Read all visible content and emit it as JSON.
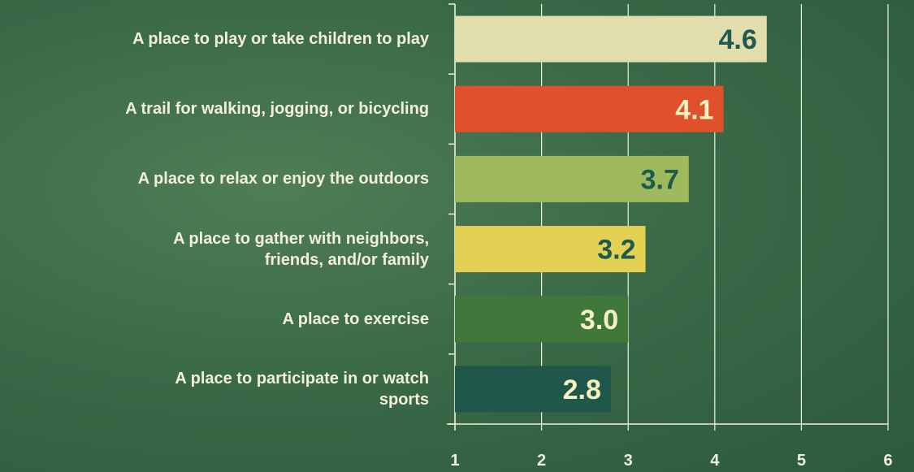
{
  "chart_data": {
    "type": "hbar",
    "categories": [
      "A place to play or take children to play",
      "A trail for walking, jogging, or bicycling",
      "A place to relax or enjoy the outdoors",
      "A place to gather with neighbors,\nfriends, and/or family",
      "A place to exercise",
      "A place to participate in or watch\nsports"
    ],
    "values": [
      4.6,
      4.1,
      3.7,
      3.2,
      3,
      2.8
    ],
    "value_labels": [
      "4.6",
      "4.1",
      "3.7",
      "3.2",
      "3.0",
      "2.8"
    ],
    "colors": [
      "#e2ddad",
      "#e0502b",
      "#9fba5c",
      "#e2d152",
      "#40773a",
      "#1f574a"
    ],
    "xlim": [
      1,
      6
    ],
    "xticks": [
      1,
      2,
      3,
      4,
      5,
      6
    ],
    "grid": true
  }
}
